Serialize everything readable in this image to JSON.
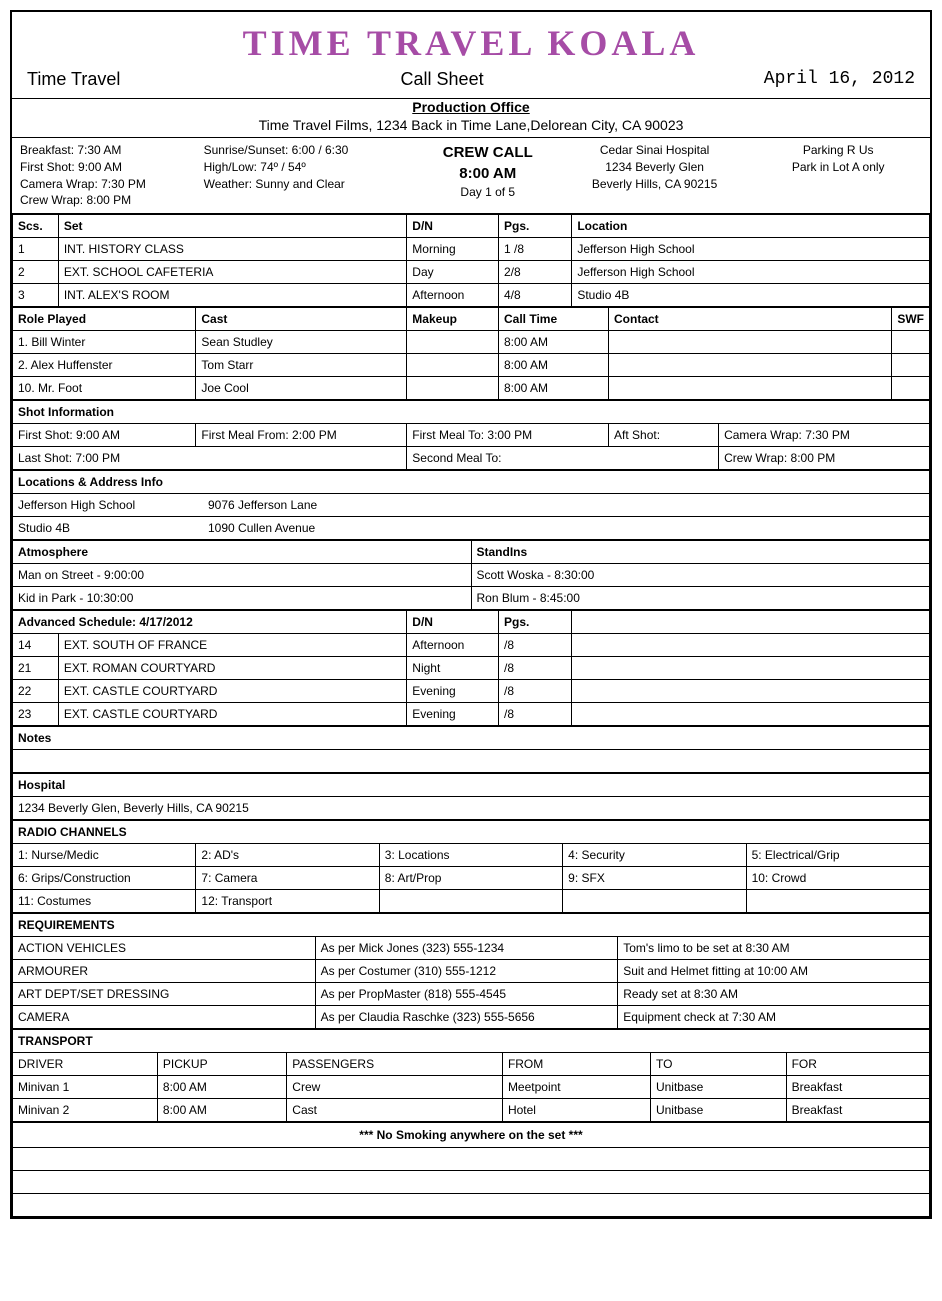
{
  "title": "Time Travel Koala",
  "header": {
    "left": "Time Travel",
    "center": "Call Sheet",
    "date": "April 16, 2012"
  },
  "prod_office": {
    "label": "Production Office",
    "address": "Time Travel Films, 1234 Back in Time Lane,Delorean City, CA 90023"
  },
  "info": {
    "times": {
      "breakfast": "Breakfast: 7:30 AM",
      "first_shot": "First Shot: 9:00 AM",
      "camera_wrap": "Camera Wrap: 7:30 PM",
      "crew_wrap": "Crew Wrap: 8:00 PM"
    },
    "weather": {
      "sun": "Sunrise/Sunset: 6:00   / 6:30",
      "temp": "High/Low: 74º    / 54º",
      "cond": "Weather: Sunny and Clear"
    },
    "crewcall": {
      "label": "CREW CALL",
      "time": "8:00 AM",
      "day": "Day 1 of 5"
    },
    "hospital": {
      "name": "Cedar Sinai Hospital",
      "addr1": "1234 Beverly Glen",
      "addr2": "Beverly Hills, CA 90215"
    },
    "parking": {
      "name": "Parking R Us",
      "note": "Park in Lot A only"
    }
  },
  "scenes": {
    "headers": [
      "Scs.",
      "Set",
      "D/N",
      "Pgs.",
      "Location"
    ],
    "rows": [
      [
        "1",
        "INT. HISTORY CLASS",
        "Morning",
        "1 /8",
        "Jefferson High School"
      ],
      [
        "2",
        "EXT. SCHOOL CAFETERIA",
        "Day",
        "2/8",
        "Jefferson High School"
      ],
      [
        "3",
        "INT. ALEX'S ROOM",
        "Afternoon",
        "4/8",
        "Studio 4B"
      ]
    ]
  },
  "cast": {
    "headers": [
      "Role Played",
      "Cast",
      "Makeup",
      "Call Time",
      "Contact",
      "SWF"
    ],
    "rows": [
      [
        "1. Bill Winter",
        "Sean Studley",
        "",
        "8:00 AM",
        "",
        ""
      ],
      [
        "2. Alex Huffenster",
        "Tom Starr",
        "",
        "8:00 AM",
        "",
        ""
      ],
      [
        "10. Mr. Foot",
        "Joe Cool",
        "",
        "8:00 AM",
        "",
        ""
      ]
    ]
  },
  "shot": {
    "label": "Shot Information",
    "r1": [
      "First Shot: 9:00 AM",
      "First Meal From: 2:00 PM",
      "First Meal To: 3:00 PM",
      "Aft Shot:",
      "Camera Wrap: 7:30 PM"
    ],
    "r2": [
      "Last Shot: 7:00 PM",
      "",
      "Second Meal To:",
      "",
      "Crew Wrap: 8:00 PM"
    ]
  },
  "locations": {
    "label": "Locations & Address Info",
    "rows": [
      [
        "Jefferson High School",
        "9076 Jefferson Lane"
      ],
      [
        "Studio 4B",
        "1090 Cullen Avenue"
      ]
    ]
  },
  "atmos": {
    "l_label": "Atmosphere",
    "r_label": "StandIns",
    "rows": [
      [
        "Man on Street - 9:00:00",
        "Scott Woska - 8:30:00"
      ],
      [
        "Kid in Park - 10:30:00",
        "Ron Blum - 8:45:00"
      ]
    ]
  },
  "adv": {
    "label": "Advanced Schedule: 4/17/2012",
    "dn": "D/N",
    "pgs": "Pgs.",
    "rows": [
      [
        "14",
        "EXT. SOUTH OF FRANCE",
        "Afternoon",
        "/8",
        ""
      ],
      [
        "21",
        "EXT. ROMAN COURTYARD",
        "Night",
        "/8",
        ""
      ],
      [
        "22",
        "EXT. CASTLE COURTYARD",
        "Evening",
        "/8",
        ""
      ],
      [
        "23",
        "EXT. CASTLE COURTYARD",
        "Evening",
        "/8",
        ""
      ]
    ]
  },
  "notes": {
    "label": "Notes"
  },
  "hosp": {
    "label": "Hospital",
    "addr": "1234 Beverly Glen, Beverly Hills, CA 90215"
  },
  "radio": {
    "label": "RADIO CHANNELS",
    "r1": [
      "1: Nurse/Medic",
      "2: AD's",
      "3: Locations",
      "4: Security",
      "5: Electrical/Grip"
    ],
    "r2": [
      "6: Grips/Construction",
      "7: Camera",
      "8: Art/Prop",
      "9: SFX",
      "10: Crowd"
    ],
    "r3": [
      "11: Costumes",
      "12: Transport",
      "",
      "",
      ""
    ]
  },
  "req": {
    "label": "REQUIREMENTS",
    "rows": [
      [
        "ACTION VEHICLES",
        "As per Mick Jones (323) 555-1234",
        "Tom's limo to be set at 8:30 AM"
      ],
      [
        "ARMOURER",
        "As per Costumer (310) 555-1212",
        "Suit and Helmet fitting at 10:00 AM"
      ],
      [
        "ART DEPT/SET DRESSING",
        "As per PropMaster (818) 555-4545",
        "Ready set at 8:30 AM"
      ],
      [
        "CAMERA",
        "As per Claudia Raschke (323) 555-5656",
        "Equipment check at 7:30 AM"
      ]
    ]
  },
  "transport": {
    "label": "TRANSPORT",
    "headers": [
      "DRIVER",
      "PICKUP",
      "PASSENGERS",
      "FROM",
      "TO",
      "FOR"
    ],
    "rows": [
      [
        "Minivan 1",
        "8:00 AM",
        "Crew",
        "Meetpoint",
        "Unitbase",
        "Breakfast"
      ],
      [
        "Minivan 2",
        "8:00 AM",
        "Cast",
        "Hotel",
        "Unitbase",
        "Breakfast"
      ]
    ]
  },
  "footer": "*** No Smoking anywhere on the set ***"
}
